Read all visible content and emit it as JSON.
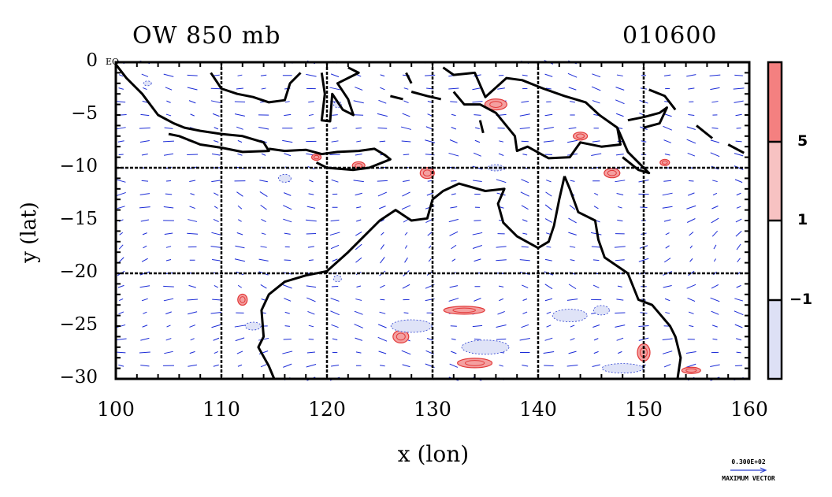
{
  "title_left": "OW 850 mb",
  "title_right": "010600",
  "axes": {
    "x_label": "x (lon)",
    "y_label": "y (lat)",
    "x_ticks": [
      "100",
      "110",
      "120",
      "130",
      "140",
      "150",
      "160"
    ],
    "y_ticks": [
      "0",
      "−5",
      "−10",
      "−15",
      "−20",
      "−25",
      "−30"
    ],
    "x_range": [
      100,
      160
    ],
    "y_range": [
      -30,
      0
    ],
    "corner_label": "EQ"
  },
  "colorbar": {
    "labels": [
      "5",
      "1",
      "−1"
    ],
    "colors": [
      "#f48080",
      "#f7c2c2",
      "#ffffff",
      "#dde0f5"
    ]
  },
  "reference_vector": {
    "value": "0.300E+02",
    "label": "MAXIMUM VECTOR"
  },
  "colors": {
    "coast": "#000000",
    "vector": "#1a2ad6",
    "positive": "#e23a3a",
    "negative": "#2b3fd0"
  }
}
